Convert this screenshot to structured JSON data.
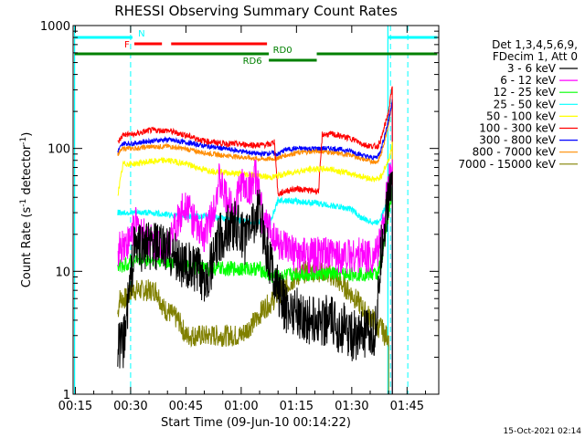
{
  "chart_data": {
    "type": "line",
    "title": "RHESSI Observing Summary Count Rates",
    "xlabel": "Start Time (09-Jun-10 00:14:22)",
    "ylabel": "Count Rate (s⁻¹ detector⁻¹)",
    "ylabel_main": "Count Rate (s",
    "ylabel_sup1": "-1",
    "ylabel_mid": " detector",
    "ylabel_sup2": "-1",
    "ylabel_end": ")",
    "yscale": "log",
    "xlim": [
      14.4,
      113.6
    ],
    "ylim": [
      1,
      1000
    ],
    "x_ticks": [
      {
        "value": 15,
        "label": "00:15"
      },
      {
        "value": 30,
        "label": "00:30"
      },
      {
        "value": 45,
        "label": "00:45"
      },
      {
        "value": 60,
        "label": "01:00"
      },
      {
        "value": 75,
        "label": "01:15"
      },
      {
        "value": 90,
        "label": "01:30"
      },
      {
        "value": 105,
        "label": "01:45"
      }
    ],
    "y_ticks": [
      {
        "value": 1,
        "label": "1"
      },
      {
        "value": 10,
        "label": "10"
      },
      {
        "value": 100,
        "label": "100"
      },
      {
        "value": 1000,
        "label": "1000"
      }
    ],
    "legend_header": [
      "Det 1,3,4,5,6,9,",
      "FDecim 1, Att 0"
    ],
    "legend_position": "right",
    "footer_date": "15-Oct-2021 02:14",
    "series": [
      {
        "name": "3 - 6 keV",
        "color": "#000000",
        "x": [
          26.5,
          28,
          31,
          35,
          40,
          45,
          48,
          50,
          52,
          54,
          56,
          58,
          59.5,
          61,
          63,
          65,
          67,
          68,
          70,
          72,
          74,
          76,
          78,
          80,
          82,
          84,
          86,
          88,
          90,
          92,
          94,
          96,
          97,
          98,
          100,
          101
        ],
        "y": [
          2.5,
          2.5,
          16,
          16,
          15,
          11,
          10,
          9,
          11,
          18,
          22,
          24,
          22,
          18,
          26,
          30,
          15,
          12,
          7,
          5,
          5,
          4.5,
          4,
          4,
          4,
          4,
          3.5,
          3.5,
          3,
          3,
          3,
          3,
          5,
          15,
          40,
          60
        ]
      },
      {
        "name": "6 - 12 keV",
        "color": "#ff00ff",
        "x": [
          26.5,
          28,
          29.5,
          31,
          33,
          36,
          40,
          43,
          45,
          47,
          48,
          50,
          52,
          54,
          56,
          58,
          60,
          62,
          64,
          66,
          68,
          70,
          72,
          74,
          76,
          78,
          80,
          82,
          84,
          86,
          88,
          90,
          92,
          94,
          96,
          97,
          98,
          100,
          101
        ],
        "y": [
          15,
          17,
          17,
          25,
          20,
          17,
          16,
          26,
          38,
          26,
          22,
          20,
          28,
          55,
          38,
          32,
          52,
          45,
          60,
          25,
          22,
          17,
          15,
          14,
          13.5,
          13.5,
          13.5,
          13.5,
          13.5,
          13.5,
          13.5,
          13.5,
          13.5,
          13.5,
          13.5,
          14,
          20,
          50,
          80
        ]
      },
      {
        "name": "12 - 25 keV",
        "color": "#00ff00",
        "x": [
          26.5,
          28,
          31,
          35,
          40,
          45,
          50,
          55,
          60,
          65,
          68,
          70,
          72,
          75,
          80,
          85,
          90,
          95,
          97,
          98,
          100,
          101
        ],
        "y": [
          11,
          11,
          12.5,
          12.5,
          12,
          11,
          10.5,
          10.5,
          10.5,
          10.5,
          9,
          9,
          9.2,
          9.5,
          9.5,
          9.5,
          9.5,
          9.5,
          9.5,
          12,
          30,
          45
        ]
      },
      {
        "name": "25 - 50 keV",
        "color": "#00ffff",
        "x": [
          26.5,
          28,
          31,
          35,
          40,
          45,
          50,
          55,
          60,
          65,
          68,
          70,
          72,
          75,
          80,
          85,
          90,
          92,
          94,
          96,
          97,
          98,
          100,
          101
        ],
        "y": [
          30,
          30,
          30,
          30,
          29,
          28,
          28,
          27,
          26,
          25,
          25,
          38,
          38,
          37,
          36,
          34,
          32,
          28,
          26,
          25,
          25,
          28,
          38,
          50
        ]
      },
      {
        "name": "50 - 100 keV",
        "color": "#ffff00",
        "x": [
          26.5,
          28,
          31,
          35,
          40,
          45,
          50,
          55,
          60,
          65,
          68,
          70,
          72,
          75,
          80,
          82,
          84,
          86,
          88,
          90,
          92,
          94,
          96,
          97,
          98,
          100,
          101
        ],
        "y": [
          42,
          75,
          75,
          78,
          80,
          75,
          67,
          64,
          62,
          60,
          58,
          60,
          62,
          65,
          68,
          68,
          68,
          66,
          64,
          62,
          60,
          58,
          56,
          56,
          60,
          80,
          110
        ]
      },
      {
        "name": "100 - 300 keV",
        "color": "#ff0000",
        "x": [
          26.5,
          28,
          31,
          35,
          40,
          45,
          50,
          55,
          60,
          65,
          68,
          69,
          70,
          72,
          75,
          80,
          81,
          82,
          85,
          90,
          92,
          94,
          96,
          97,
          98,
          100,
          101
        ],
        "y": [
          110,
          130,
          130,
          140,
          140,
          128,
          115,
          110,
          108,
          106,
          108,
          115,
          42,
          45,
          47,
          45,
          45,
          130,
          130,
          120,
          112,
          106,
          104,
          104,
          120,
          200,
          320
        ]
      },
      {
        "name": "300 - 800 keV",
        "color": "#0000ff",
        "x": [
          26.5,
          28,
          31,
          35,
          40,
          45,
          50,
          55,
          60,
          65,
          68,
          70,
          72,
          75,
          80,
          82,
          85,
          90,
          92,
          94,
          96,
          97,
          98,
          100,
          101
        ],
        "y": [
          95,
          110,
          110,
          115,
          118,
          112,
          105,
          100,
          95,
          90,
          92,
          90,
          98,
          100,
          100,
          100,
          100,
          95,
          90,
          86,
          84,
          86,
          100,
          170,
          250
        ]
      },
      {
        "name": "800 - 7000 keV",
        "color": "#ff8c00",
        "x": [
          26.5,
          28,
          31,
          35,
          40,
          45,
          50,
          55,
          60,
          65,
          68,
          70,
          72,
          75,
          80,
          82,
          85,
          90,
          92,
          94,
          96,
          97,
          98,
          100,
          101
        ],
        "y": [
          90,
          100,
          100,
          103,
          104,
          99,
          92,
          88,
          85,
          82,
          82,
          84,
          88,
          92,
          95,
          95,
          92,
          88,
          84,
          80,
          78,
          78,
          90,
          160,
          240
        ]
      },
      {
        "name": "7000 - 15000 keV",
        "color": "#808000",
        "x": [
          26.5,
          27,
          29,
          30,
          33,
          35,
          37,
          39,
          41,
          43,
          45,
          47,
          50,
          53,
          55,
          58,
          60,
          62,
          64,
          66,
          68,
          70,
          72,
          74,
          76,
          78,
          80,
          82,
          84,
          86,
          88,
          90,
          92,
          94,
          96,
          97,
          98,
          99,
          100
        ],
        "y": [
          4.5,
          6,
          6,
          7,
          7,
          7,
          7,
          5,
          4.5,
          4,
          3,
          3,
          3,
          3,
          3,
          3,
          3,
          3.5,
          4,
          5,
          5.5,
          6.5,
          7.5,
          8.5,
          9.5,
          10,
          10,
          10,
          9.5,
          8.5,
          7.5,
          6.5,
          5.5,
          4.5,
          4,
          3.5,
          3.5,
          3,
          3
        ]
      }
    ],
    "flag_bars": [
      {
        "label": "N",
        "color": "#00ffff",
        "segments": [
          [
            14.8,
            30.5
          ],
          [
            100,
            113.2
          ]
        ],
        "level": 0
      },
      {
        "label": "F",
        "color": "#ff0000",
        "segments": [
          [
            31,
            38.5
          ],
          [
            41,
            67
          ]
        ],
        "level": 1
      },
      {
        "label": "RD0",
        "color": "#008000",
        "segments": [
          [
            14.8,
            67.5
          ],
          [
            80.5,
            113.2
          ]
        ],
        "level": 2
      },
      {
        "label": "RD6",
        "color": "#008000",
        "segments": [
          [
            67.5,
            80.5
          ]
        ],
        "level": 3
      }
    ],
    "vlines_dashed": [
      30,
      100.5,
      105.2
    ],
    "vlines_solid": [
      {
        "x": 14.8,
        "color": "#00ffff"
      },
      {
        "x": 99.8,
        "color": "#00ffff"
      }
    ]
  }
}
